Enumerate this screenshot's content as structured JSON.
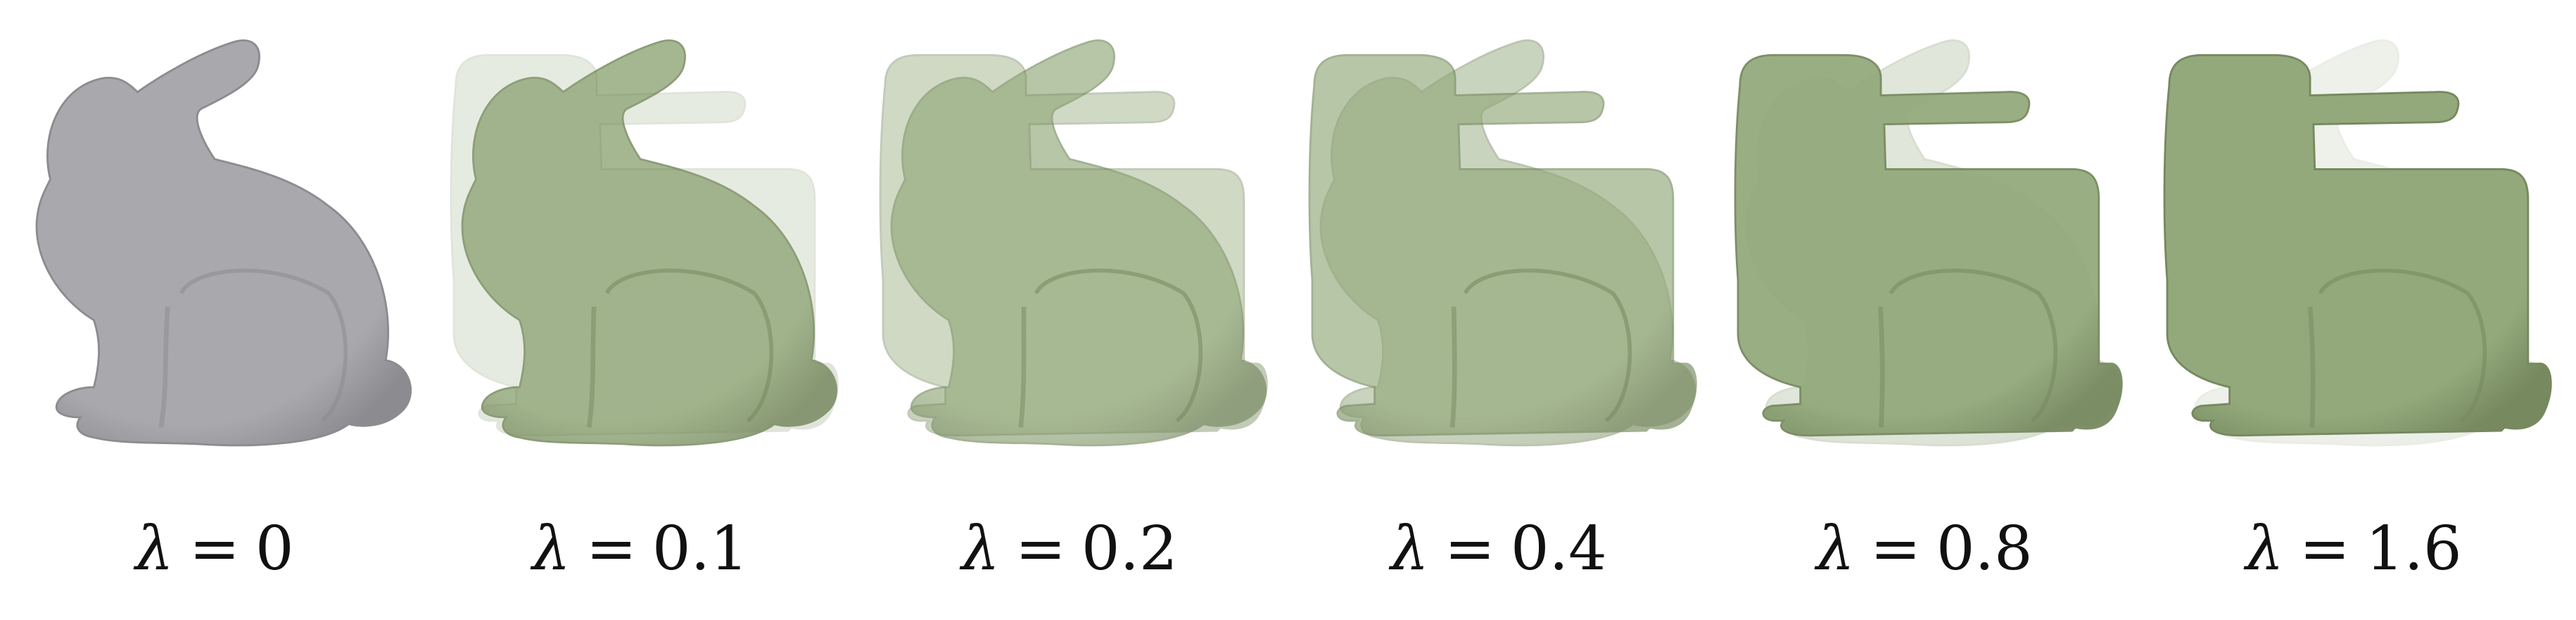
{
  "figure": {
    "colors": {
      "original": "#a9a9ad",
      "original_dark": "#8c8c90",
      "smoothed": "#93a97b",
      "smoothed_dark": "#76895f",
      "background": "#ffffff"
    },
    "panels": [
      {
        "symbol": "λ",
        "eq": "=",
        "value": "0",
        "variant": "original",
        "box": 0.0
      },
      {
        "symbol": "λ",
        "eq": "=",
        "value": "0.1",
        "variant": "smoothed",
        "box": 0.2
      },
      {
        "symbol": "λ",
        "eq": "=",
        "value": "0.2",
        "variant": "smoothed",
        "box": 0.4
      },
      {
        "symbol": "λ",
        "eq": "=",
        "value": "0.4",
        "variant": "smoothed",
        "box": 0.6
      },
      {
        "symbol": "λ",
        "eq": "=",
        "value": "0.8",
        "variant": "smoothed",
        "box": 0.85
      },
      {
        "symbol": "λ",
        "eq": "=",
        "value": "1.6",
        "variant": "smoothed",
        "box": 1.0
      }
    ]
  }
}
